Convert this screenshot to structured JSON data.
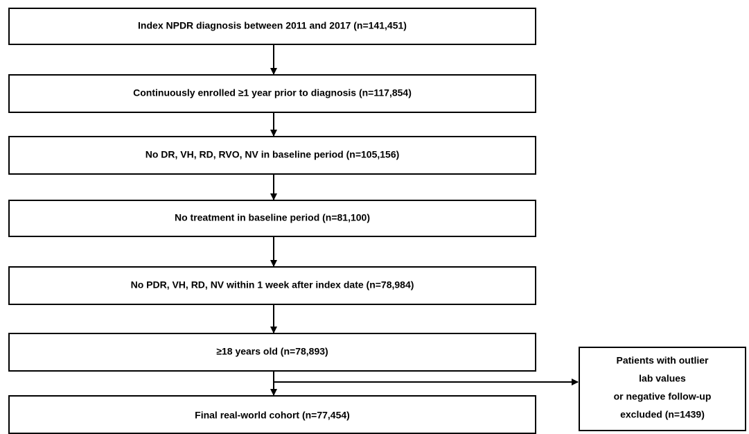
{
  "nodes": [
    {
      "label": "Index NPDR diagnosis between 2011 and 2017 (n=141,451)"
    },
    {
      "label": "Continuously enrolled ≥1 year prior to diagnosis (n=117,854)"
    },
    {
      "label": "No DR, VH, RD, RVO, NV in baseline period (n=105,156)"
    },
    {
      "label": "No treatment in baseline period (n=81,100)"
    },
    {
      "label": "No PDR, VH, RD, NV within 1 week after index date (n=78,984)"
    },
    {
      "label": "≥18 years old (n=78,893)"
    },
    {
      "label": "Final real-world cohort (n=77,454)"
    }
  ],
  "excluded": {
    "lines": [
      "Patients with outlier",
      "lab values",
      "or negative follow-up",
      "excluded (n=1439)"
    ]
  }
}
